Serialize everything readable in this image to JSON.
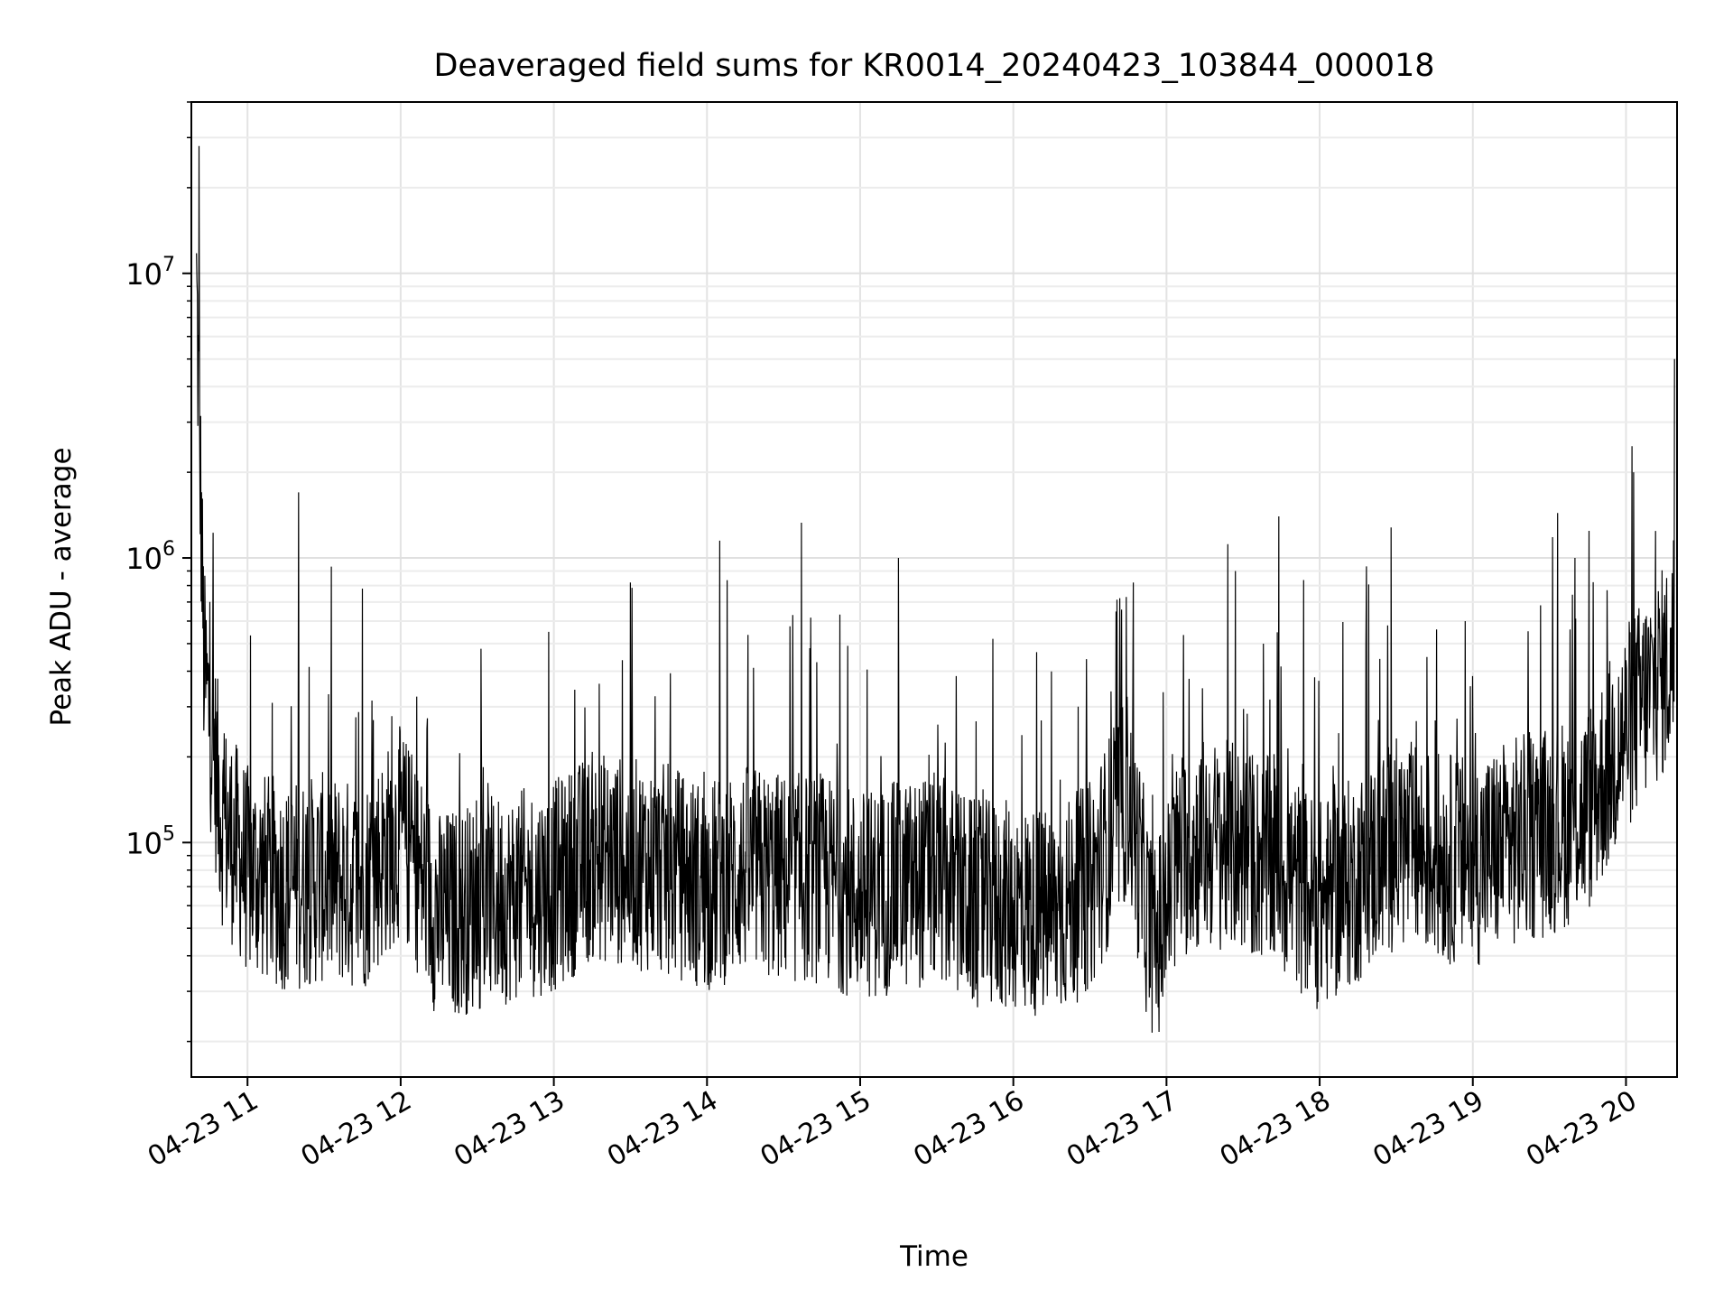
{
  "chart_data": {
    "type": "line",
    "title": "Deaveraged field sums for KR0014_20240423_103844_000018",
    "xlabel": "Time",
    "ylabel": "Peak ADU - average",
    "xlim": [
      "2024-04-23 10:38",
      "2024-04-23 20:20"
    ],
    "ylim": [
      15000,
      40000000
    ],
    "yscale": "log",
    "grid": true,
    "x_ticks": [
      "04-23 11",
      "04-23 12",
      "04-23 13",
      "04-23 14",
      "04-23 15",
      "04-23 16",
      "04-23 17",
      "04-23 18",
      "04-23 19",
      "04-23 20"
    ],
    "y_ticks": [
      {
        "base": "10",
        "exp": "5",
        "value": 100000
      },
      {
        "base": "10",
        "exp": "6",
        "value": 1000000
      },
      {
        "base": "10",
        "exp": "7",
        "value": 10000000
      }
    ],
    "series": [
      {
        "color": "#000000",
        "x": [
          "2024-04-23 10:40",
          "2024-04-23 10:43",
          "2024-04-23 10:50",
          "2024-04-23 11:00",
          "2024-04-23 11:15",
          "2024-04-23 11:30",
          "2024-04-23 11:45",
          "2024-04-23 12:00",
          "2024-04-23 12:15",
          "2024-04-23 12:30",
          "2024-04-23 12:45",
          "2024-04-23 13:00",
          "2024-04-23 13:15",
          "2024-04-23 13:30",
          "2024-04-23 13:45",
          "2024-04-23 14:00",
          "2024-04-23 14:15",
          "2024-04-23 14:30",
          "2024-04-23 14:45",
          "2024-04-23 15:00",
          "2024-04-23 15:15",
          "2024-04-23 15:30",
          "2024-04-23 15:45",
          "2024-04-23 16:00",
          "2024-04-23 16:15",
          "2024-04-23 16:30",
          "2024-04-23 16:45",
          "2024-04-23 16:55",
          "2024-04-23 17:05",
          "2024-04-23 17:15",
          "2024-04-23 17:30",
          "2024-04-23 17:45",
          "2024-04-23 18:00",
          "2024-04-23 18:15",
          "2024-04-23 18:30",
          "2024-04-23 18:45",
          "2024-04-23 19:00",
          "2024-04-23 19:15",
          "2024-04-23 19:30",
          "2024-04-23 19:45",
          "2024-04-23 20:00",
          "2024-04-23 20:10",
          "2024-04-23 20:19"
        ],
        "y": [
          9000000,
          400000,
          120000,
          80000,
          70000,
          75000,
          70000,
          110000,
          55000,
          60000,
          65000,
          70000,
          90000,
          85000,
          80000,
          70000,
          80000,
          75000,
          75000,
          65000,
          70000,
          75000,
          60000,
          60000,
          55000,
          70000,
          150000,
          40000,
          90000,
          100000,
          95000,
          80000,
          60000,
          75000,
          100000,
          90000,
          85000,
          100000,
          110000,
          130000,
          250000,
          350000,
          450000
        ],
        "spikes": [
          {
            "x": "2024-04-23 10:41",
            "y": 28000000
          },
          {
            "x": "2024-04-23 11:20",
            "y": 1700000
          },
          {
            "x": "2024-04-23 11:45",
            "y": 780000
          },
          {
            "x": "2024-04-23 12:58",
            "y": 550000
          },
          {
            "x": "2024-04-23 13:30",
            "y": 820000
          },
          {
            "x": "2024-04-23 14:05",
            "y": 1150000
          },
          {
            "x": "2024-04-23 14:37",
            "y": 1330000
          },
          {
            "x": "2024-04-23 15:15",
            "y": 1000000
          },
          {
            "x": "2024-04-23 15:52",
            "y": 520000
          },
          {
            "x": "2024-04-23 16:47",
            "y": 820000
          },
          {
            "x": "2024-04-23 17:27",
            "y": 900000
          },
          {
            "x": "2024-04-23 17:44",
            "y": 1400000
          },
          {
            "x": "2024-04-23 18:28",
            "y": 1280000
          },
          {
            "x": "2024-04-23 18:57",
            "y": 600000
          },
          {
            "x": "2024-04-23 19:40",
            "y": 1000000
          },
          {
            "x": "2024-04-23 20:03",
            "y": 2000000
          },
          {
            "x": "2024-04-23 20:19",
            "y": 5000000
          }
        ]
      }
    ]
  }
}
